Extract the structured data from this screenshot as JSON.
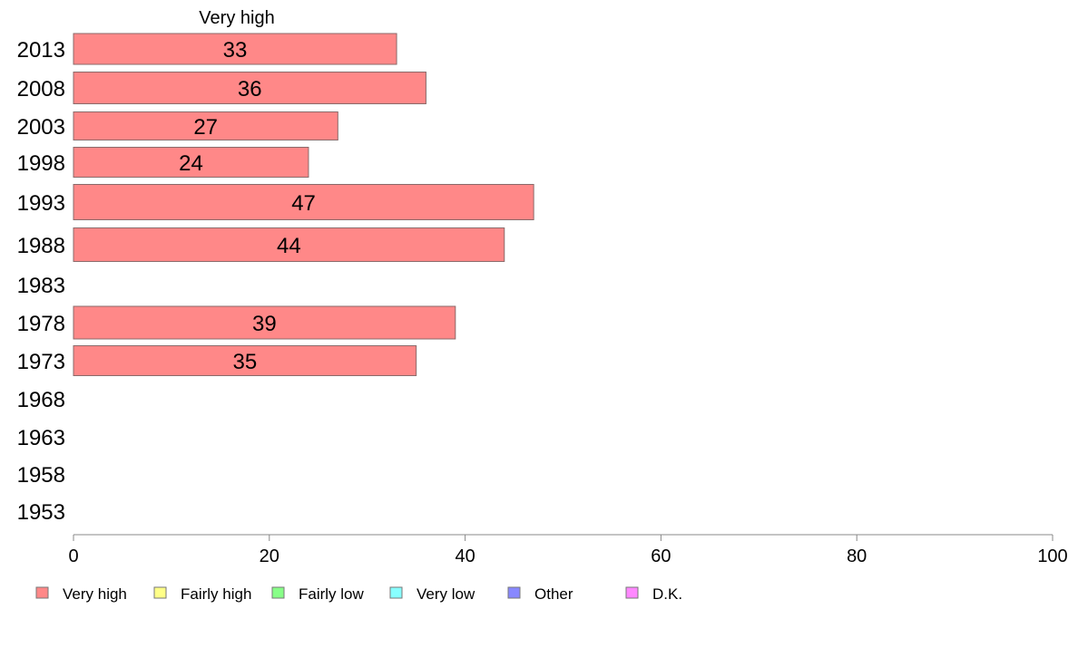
{
  "chart_data": {
    "type": "bar",
    "orientation": "horizontal",
    "series_title": "Very high",
    "categories": [
      "2013",
      "2008",
      "2003",
      "1998",
      "1993",
      "1988",
      "1983",
      "1978",
      "1973",
      "1968",
      "1963",
      "1958",
      "1953"
    ],
    "series": [
      {
        "name": "Very high",
        "color": "#ff8888",
        "values": [
          33,
          36,
          27,
          24,
          47,
          44,
          null,
          39,
          35,
          null,
          null,
          null,
          null
        ]
      }
    ],
    "xlim": [
      0,
      100
    ],
    "xticks": [
      0,
      20,
      40,
      60,
      80,
      100
    ],
    "grid": false,
    "legend_position": "bottom",
    "legend": [
      {
        "label": "Very high",
        "color": "#ff8888"
      },
      {
        "label": "Fairly high",
        "color": "#ffff88"
      },
      {
        "label": "Fairly low",
        "color": "#88ff88"
      },
      {
        "label": "Very low",
        "color": "#88ffff"
      },
      {
        "label": "Other",
        "color": "#8888ff"
      },
      {
        "label": "D.K.",
        "color": "#ff88ff"
      }
    ]
  }
}
